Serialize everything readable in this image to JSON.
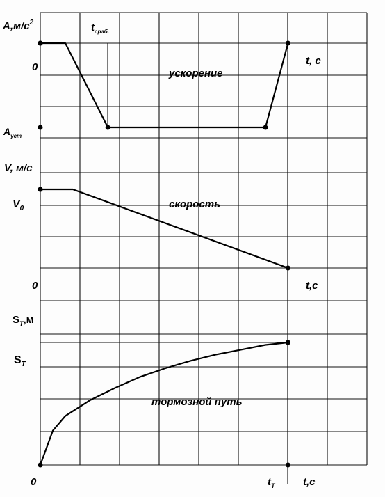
{
  "chart_data": [
    {
      "type": "line",
      "name_printed": "ускорение",
      "ylabel_main": "A,м/с",
      "ylabel_exp": "2",
      "xlabel": "t, c",
      "origin_label": "0",
      "tick_t_main": "t",
      "tick_t_sub": "сраб.",
      "tick_a_main": "A",
      "tick_a_sub": "уст",
      "x": [
        0,
        0.1,
        0.27,
        0.9,
        0.99
      ],
      "y": [
        0,
        0,
        -1,
        -1,
        0
      ],
      "ylim": [
        -1.15,
        0.1
      ],
      "grid": true
    },
    {
      "type": "line",
      "name_printed": "скорость",
      "ylabel": "V, м/с",
      "xlabel": "t,c",
      "origin_label": "0",
      "tick_v_main": "V",
      "tick_v_sub": "0",
      "x": [
        0,
        0.13,
        0.99
      ],
      "y": [
        1,
        1,
        0
      ],
      "ylim": [
        -0.1,
        1.25
      ],
      "grid": true
    },
    {
      "type": "line",
      "name_printed": "тормозной путь",
      "ylabel_main": "S",
      "ylabel_sub": "T",
      "ylabel_unit": ",м",
      "xlabel": "t,c",
      "origin_label": "0",
      "tick_s_main": "S",
      "tick_s_sub": "T",
      "tick_tt_main": "t",
      "tick_tt_sub": "T",
      "x": [
        0,
        0.05,
        0.1,
        0.2,
        0.3,
        0.4,
        0.5,
        0.6,
        0.7,
        0.8,
        0.9,
        0.99
      ],
      "y": [
        0,
        0.28,
        0.4,
        0.53,
        0.63,
        0.72,
        0.79,
        0.85,
        0.9,
        0.94,
        0.98,
        1
      ],
      "ylim": [
        0,
        1.1
      ],
      "grid": true
    }
  ]
}
